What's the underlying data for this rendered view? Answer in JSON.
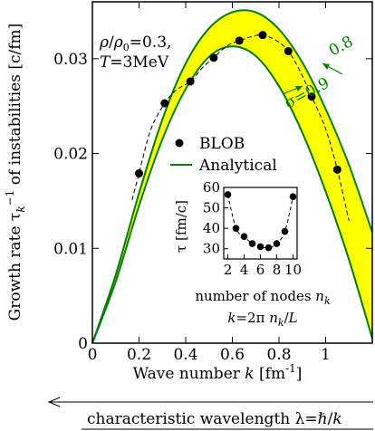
{
  "chart_data": [
    {
      "type": "line",
      "xlabel": "Wave number k [fm-1]",
      "ylabel": "Growth rate τk-1 of instabilities [c/fm]",
      "xlim": [
        0,
        1.2
      ],
      "ylim": [
        0,
        0.036
      ],
      "x_ticks": [
        0,
        0.2,
        0.4,
        0.6,
        0.8,
        1
      ],
      "y_ticks": [
        0,
        0.01,
        0.02,
        0.03
      ],
      "x_tick_labels": [
        "0",
        "0.2",
        "0.4",
        "0.6",
        "0.8",
        "1"
      ],
      "y_tick_labels": [
        "0",
        "0.01",
        "0.02",
        "0.03"
      ],
      "annotation_text": "ρ/ρ0=0.3, T=3MeV",
      "conditions": {
        "density": "ρ/ρ0=0.3,",
        "temperature": "T=3MeV"
      },
      "legend": {
        "placement": "center-right",
        "entries": [
          "BLOB",
          "Analytical"
        ]
      },
      "series": [
        {
          "name": "BLOB",
          "style": "markers",
          "x": [
            0.2,
            0.31,
            0.42,
            0.52,
            0.63,
            0.73,
            0.84,
            0.94,
            1.05
          ],
          "y": [
            0.0179,
            0.0253,
            0.0276,
            0.0301,
            0.0319,
            0.0325,
            0.0308,
            0.026,
            0.0183
          ]
        },
        {
          "name": "Analytical",
          "style": "band",
          "band_color": "#ffff00",
          "line_color": "#008000",
          "band_labels": [
            "σ=0.9",
            "0.8"
          ],
          "x": [
            0,
            0.1,
            0.2,
            0.3,
            0.4,
            0.5,
            0.6,
            0.7,
            0.8,
            0.9,
            1.0,
            1.1,
            1.2
          ],
          "y_lower": [
            0.0,
            0.0065,
            0.0145,
            0.0215,
            0.0268,
            0.0302,
            0.0313,
            0.0303,
            0.0271,
            0.0222,
            0.016,
            0.0088,
            0.0005
          ],
          "y_upper": [
            0.0,
            0.0072,
            0.0158,
            0.0236,
            0.0295,
            0.0332,
            0.0349,
            0.0349,
            0.0331,
            0.0296,
            0.0247,
            0.0188,
            0.0117
          ]
        },
        {
          "name": "dashed-guide",
          "style": "dashed",
          "color": "#000000",
          "x": [
            0.17,
            0.2,
            0.25,
            0.31,
            0.36,
            0.42,
            0.47,
            0.52,
            0.58,
            0.63,
            0.68,
            0.73,
            0.79,
            0.84,
            0.89,
            0.94,
            1.0,
            1.05,
            1.1
          ],
          "y": [
            0.0151,
            0.0179,
            0.0225,
            0.0253,
            0.0267,
            0.0276,
            0.029,
            0.0301,
            0.0314,
            0.0319,
            0.0323,
            0.0325,
            0.0319,
            0.0308,
            0.0287,
            0.026,
            0.0226,
            0.0183,
            0.0129
          ]
        }
      ]
    },
    {
      "type": "scatter",
      "title": "",
      "xlabel": "number of nodes nk",
      "ylabel": "τ [fm/c]",
      "xlim": [
        1.5,
        10.5
      ],
      "ylim": [
        25,
        60
      ],
      "x_ticks": [
        2,
        4,
        6,
        8,
        10
      ],
      "y_ticks": [
        30,
        40,
        50,
        60
      ],
      "x_tick_labels": [
        "2",
        "4",
        "6",
        "8",
        "10"
      ],
      "y_tick_labels": [
        "30",
        "40",
        "50",
        "60"
      ],
      "formula": "k=2π nk/L",
      "series": [
        {
          "name": "BLOB",
          "x": [
            2,
            3,
            4,
            5,
            6,
            7,
            8,
            9,
            10
          ],
          "y": [
            56.5,
            40,
            36,
            32.5,
            31,
            30.5,
            32.5,
            38.5,
            55.5
          ]
        }
      ]
    }
  ],
  "bottom_caption": "characteristic wavelength λ=ℏ/k"
}
